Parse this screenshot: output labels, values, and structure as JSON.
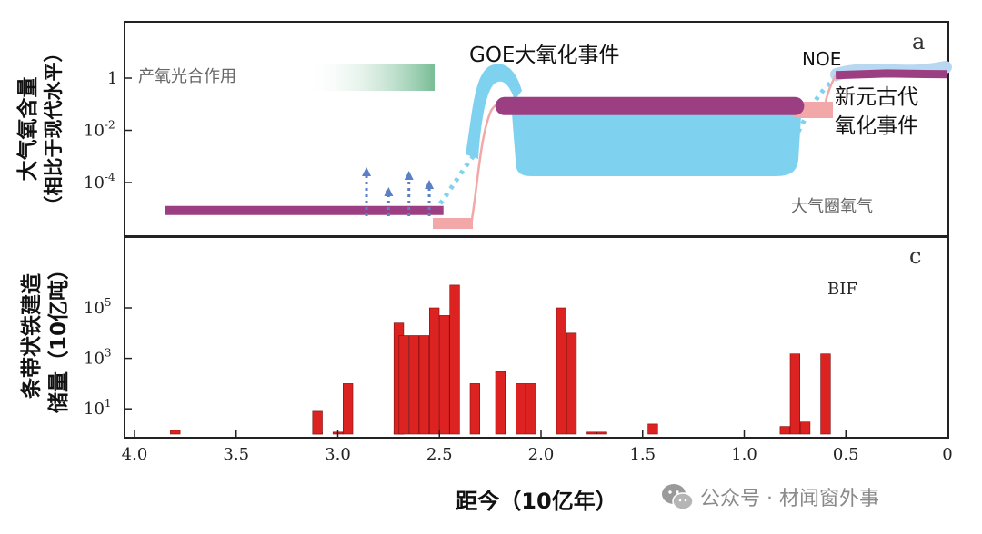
{
  "chart_data": [
    {
      "panel": "a",
      "type": "line",
      "ylabel_line1": "大气氧含量",
      "ylabel_line2": "（相比于现代水平）",
      "yscale": "log",
      "ytick_labels": [
        {
          "value": 1,
          "base": "1",
          "exp": ""
        },
        {
          "value": 0.01,
          "base": "10",
          "exp": "-2"
        },
        {
          "value": 0.0001,
          "base": "10",
          "exp": "-4"
        }
      ],
      "annotations": {
        "photosynthesis": "产氧光合作用",
        "goe": "GOE大氧化事件",
        "noe": "NOE",
        "noe_cn_line1": "新元古代",
        "noe_cn_line2": "氧化事件",
        "atmosphere": "大气圈氧气"
      },
      "series": [
        {
          "style": "purple-bar",
          "color": "#9b3f82",
          "points": [
            [
              3.85,
              8.5e-06
            ],
            [
              2.48,
              8.5e-06
            ]
          ]
        },
        {
          "style": "purple-bar",
          "color": "#9b3f82",
          "points": [
            [
              2.18,
              0.085
            ],
            [
              0.75,
              0.085
            ]
          ]
        },
        {
          "style": "purple-bar",
          "color": "#9b3f82",
          "points": [
            [
              0.55,
              1.3
            ],
            [
              0.3,
              1.5
            ],
            [
              0.0,
              1.4
            ]
          ]
        }
      ],
      "whiffs": [
        2.85,
        2.75,
        2.65,
        2.55
      ]
    },
    {
      "panel": "c",
      "type": "bar",
      "ylabel_line1": "条带状铁建造",
      "ylabel_line2": "储量（10亿吨）",
      "xlabel": "距今（10亿年）",
      "legend": "BIF",
      "yscale": "log",
      "ytick_labels": [
        {
          "value": 10,
          "base": "10",
          "exp": "1"
        },
        {
          "value": 1000,
          "base": "10",
          "exp": "3"
        },
        {
          "value": 100000,
          "base": "10",
          "exp": "5"
        }
      ],
      "xlim": [
        4.0,
        0.0
      ],
      "xtick_labels": [
        "4.0",
        "3.5",
        "3.0",
        "2.5",
        "2.0",
        "1.5",
        "1.0",
        "0.5",
        "0"
      ],
      "xtick_values": [
        4.0,
        3.5,
        3.0,
        2.5,
        2.0,
        1.5,
        1.0,
        0.5,
        0.0
      ],
      "bars": [
        {
          "age": 3.8,
          "value": 1.4
        },
        {
          "age": 3.1,
          "value": 1.2
        },
        {
          "age": 3.1,
          "value": 8
        },
        {
          "age": 3.0,
          "value": 1.2
        },
        {
          "age": 2.95,
          "value": 100
        },
        {
          "age": 2.7,
          "value": 1.3
        },
        {
          "age": 2.7,
          "value": 25000
        },
        {
          "age": 2.675,
          "value": 8000
        },
        {
          "age": 2.625,
          "value": 8000
        },
        {
          "age": 2.575,
          "value": 8000
        },
        {
          "age": 2.525,
          "value": 100000
        },
        {
          "age": 2.475,
          "value": 50000
        },
        {
          "age": 2.425,
          "value": 800000
        },
        {
          "age": 2.325,
          "value": 100
        },
        {
          "age": 2.2,
          "value": 300
        },
        {
          "age": 2.1,
          "value": 100
        },
        {
          "age": 2.05,
          "value": 100
        },
        {
          "age": 1.9,
          "value": 100000
        },
        {
          "age": 1.85,
          "value": 10000
        },
        {
          "age": 1.75,
          "value": 1.2
        },
        {
          "age": 1.7,
          "value": 1.2
        },
        {
          "age": 1.45,
          "value": 2.5
        },
        {
          "age": 0.8,
          "value": 2
        },
        {
          "age": 0.75,
          "value": 1500
        },
        {
          "age": 0.7,
          "value": 3
        },
        {
          "age": 0.6,
          "value": 1500
        }
      ]
    }
  ],
  "watermark": {
    "icon": "wechat-icon",
    "text": "公众号 · 材闻窗外事"
  },
  "colors": {
    "purple": "#9b3f82",
    "lightblue": "#7fd2ef",
    "pink": "#f2a8a8",
    "red": "#dd2222",
    "green": "#7bbf97",
    "dots": "#5b80c4"
  }
}
